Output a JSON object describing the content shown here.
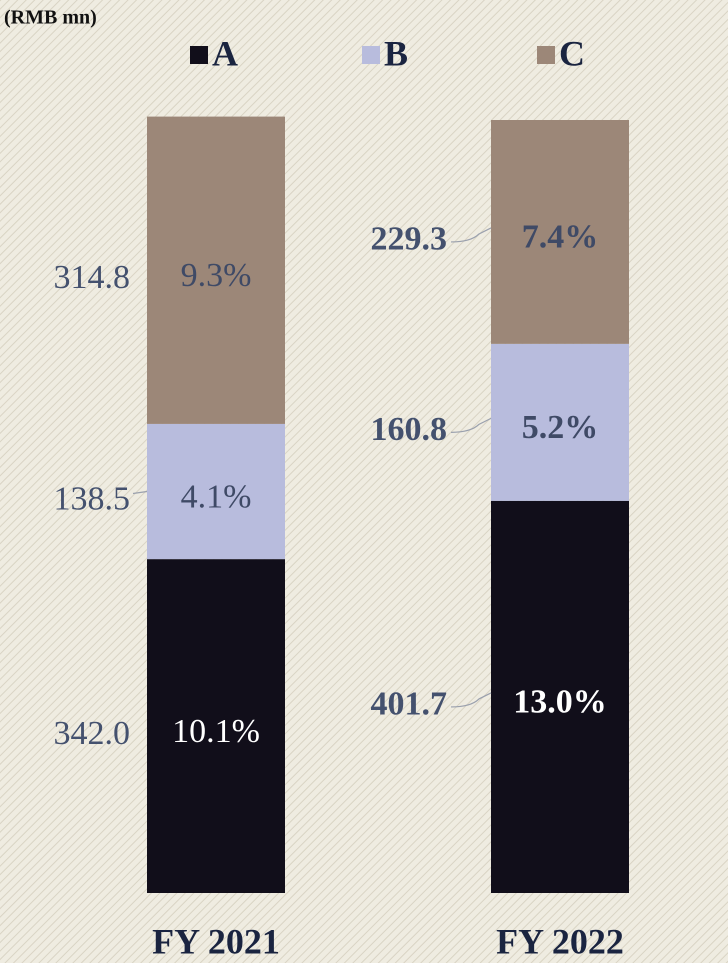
{
  "chart_data": {
    "type": "stacked_bar",
    "axis_label": "(RMB mn)",
    "categories": [
      "FY 2021",
      "FY 2022"
    ],
    "ylim": [
      0,
      800
    ],
    "bold_labels": [
      false,
      true
    ],
    "series": [
      {
        "name": "A",
        "color": "#110e1a",
        "values": [
          342.0,
          401.7
        ],
        "value_labels": [
          "342.0",
          "401.7"
        ],
        "percent_labels": [
          "10.1%",
          "13.0%"
        ],
        "percent_color": "#ffffff"
      },
      {
        "name": "B",
        "color": "#b8bcdd",
        "values": [
          138.5,
          160.8
        ],
        "value_labels": [
          "138.5",
          "160.8"
        ],
        "percent_labels": [
          "4.1%",
          "5.2%"
        ],
        "percent_color": "#3f4a66"
      },
      {
        "name": "C",
        "color": "#9c8778",
        "values": [
          314.8,
          229.3
        ],
        "value_labels": [
          "314.8",
          "229.3"
        ],
        "percent_labels": [
          "9.3%",
          "7.4%"
        ],
        "percent_color": "#3f4a66"
      }
    ]
  }
}
